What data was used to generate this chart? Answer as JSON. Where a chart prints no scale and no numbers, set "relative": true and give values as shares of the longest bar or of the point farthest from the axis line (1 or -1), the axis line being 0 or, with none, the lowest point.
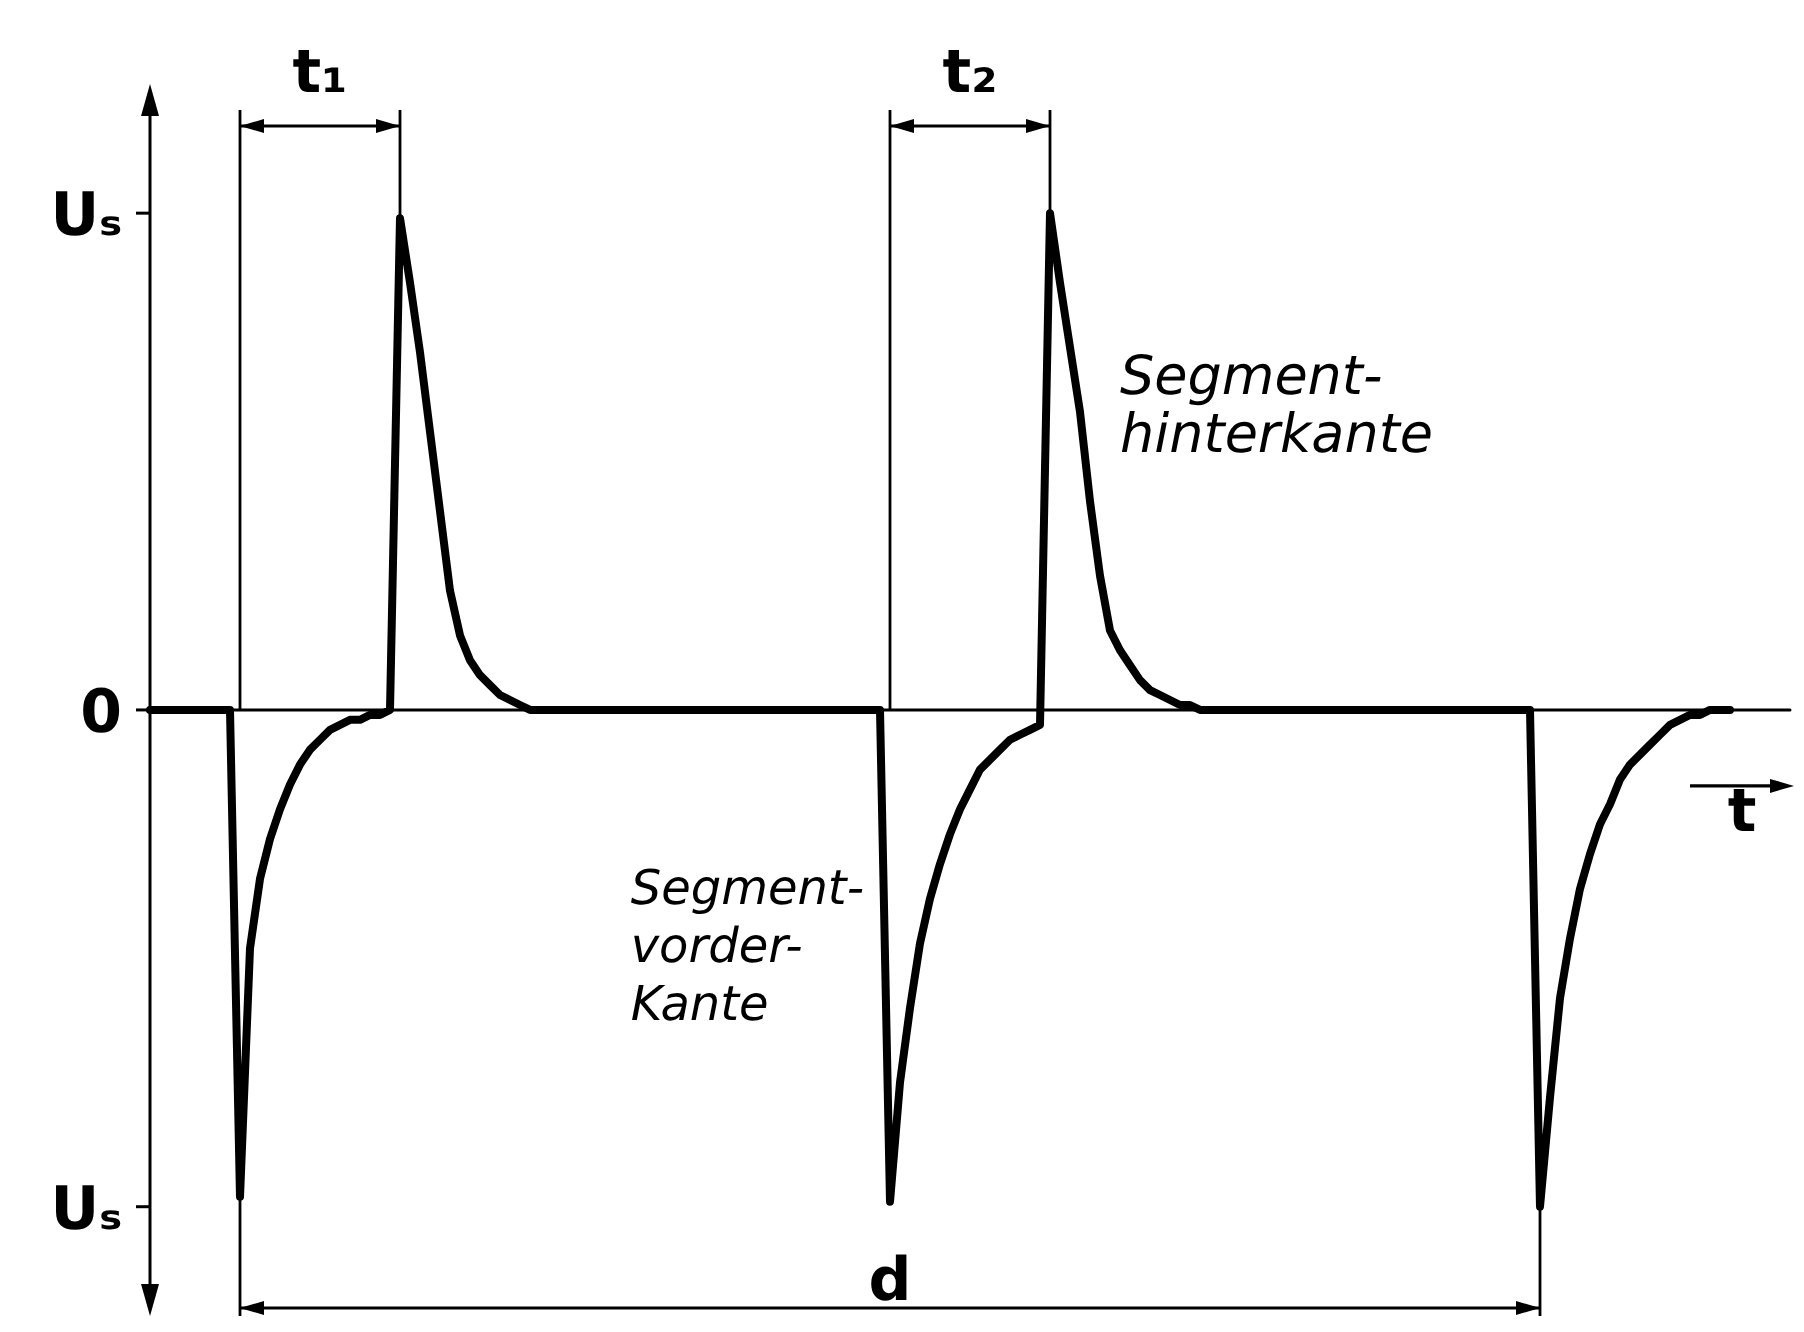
{
  "chart_data": {
    "type": "line",
    "relative": true,
    "xlabel": "t",
    "annotations": [
      "t₁",
      "t₂",
      "d",
      "Segment-\nhinterkante",
      "Segment-\nvorder-\nKante",
      "Uₛ",
      "0",
      "Uₛ"
    ],
    "categories": [
      null,
      null,
      null,
      null,
      null,
      null,
      null,
      null,
      null,
      null,
      null,
      null,
      null,
      null,
      null,
      null,
      null,
      null,
      null,
      null,
      null,
      null,
      null,
      null,
      null,
      null,
      null,
      null,
      null,
      null,
      null,
      null,
      null,
      null,
      null,
      null,
      null,
      null,
      null,
      null,
      null,
      null,
      null,
      null,
      null,
      null,
      null,
      null,
      null,
      null,
      null,
      null,
      null,
      null,
      null,
      null,
      null,
      null,
      null,
      null,
      null,
      null,
      null,
      null,
      null,
      null,
      null,
      null,
      null,
      null,
      null,
      null,
      null,
      null,
      null,
      null,
      null,
      null,
      null,
      null,
      null,
      null,
      null,
      null,
      null,
      null,
      null,
      null,
      null,
      null,
      null,
      null,
      null,
      null,
      null,
      null,
      null,
      null,
      null,
      null,
      null,
      null,
      null,
      null,
      null,
      null,
      null,
      null,
      null,
      null,
      null,
      null,
      null,
      null,
      null,
      null,
      null,
      null,
      null,
      null,
      null,
      null,
      null,
      null,
      null,
      null,
      null,
      null,
      null,
      null,
      null,
      null,
      null,
      null,
      null,
      null,
      null,
      null,
      null,
      null,
      null,
      null,
      null,
      null,
      null,
      null,
      null,
      null,
      null,
      null,
      null,
      null,
      null,
      null,
      null,
      null,
      null,
      null,
      null,
      null,
      null,
      null,
      null,
      null,
      null
    ],
    "values": [
      0,
      0,
      0,
      0,
      0,
      0,
      0,
      0,
      0,
      -0.98,
      -0.48,
      -0.34,
      -0.26,
      -0.2,
      -0.15,
      -0.11,
      -0.08,
      -0.06,
      -0.04,
      -0.03,
      -0.02,
      -0.02,
      -0.01,
      -0.01,
      0,
      0.99,
      0.86,
      0.72,
      0.56,
      0.4,
      0.24,
      0.15,
      0.1,
      0.07,
      0.05,
      0.03,
      0.02,
      0.01,
      0,
      0,
      0,
      0,
      0,
      0,
      0,
      0,
      0,
      0,
      0,
      0,
      0,
      0,
      0,
      0,
      0,
      0,
      0,
      0,
      0,
      0,
      0,
      0,
      0,
      0,
      0,
      0,
      0,
      0,
      0,
      0,
      0,
      0,
      0,
      0,
      -0.99,
      -0.75,
      -0.6,
      -0.47,
      -0.38,
      -0.31,
      -0.25,
      -0.2,
      -0.16,
      -0.12,
      -0.1,
      -0.08,
      -0.06,
      -0.05,
      -0.04,
      -0.03,
      1,
      0.86,
      0.73,
      0.6,
      0.42,
      0.27,
      0.16,
      0.12,
      0.09,
      0.06,
      0.04,
      0.03,
      0.02,
      0.01,
      0.01,
      0,
      0,
      0,
      0,
      0,
      0,
      0,
      0,
      0,
      0,
      0,
      0,
      0,
      0,
      0,
      0,
      0,
      0,
      0,
      0,
      0,
      0,
      0,
      0,
      0,
      0,
      0,
      0,
      0,
      0,
      0,
      0,
      0,
      0,
      -1,
      -0.78,
      -0.58,
      -0.46,
      -0.36,
      -0.29,
      -0.23,
      -0.19,
      -0.14,
      -0.11,
      -0.09,
      -0.07,
      -0.05,
      -0.03,
      -0.02,
      -0.01,
      -0.01,
      0,
      0,
      0,
      null,
      null,
      null,
      null,
      null,
      null
    ],
    "color": "#000000",
    "marker": "none",
    "line_style": "solid"
  }
}
